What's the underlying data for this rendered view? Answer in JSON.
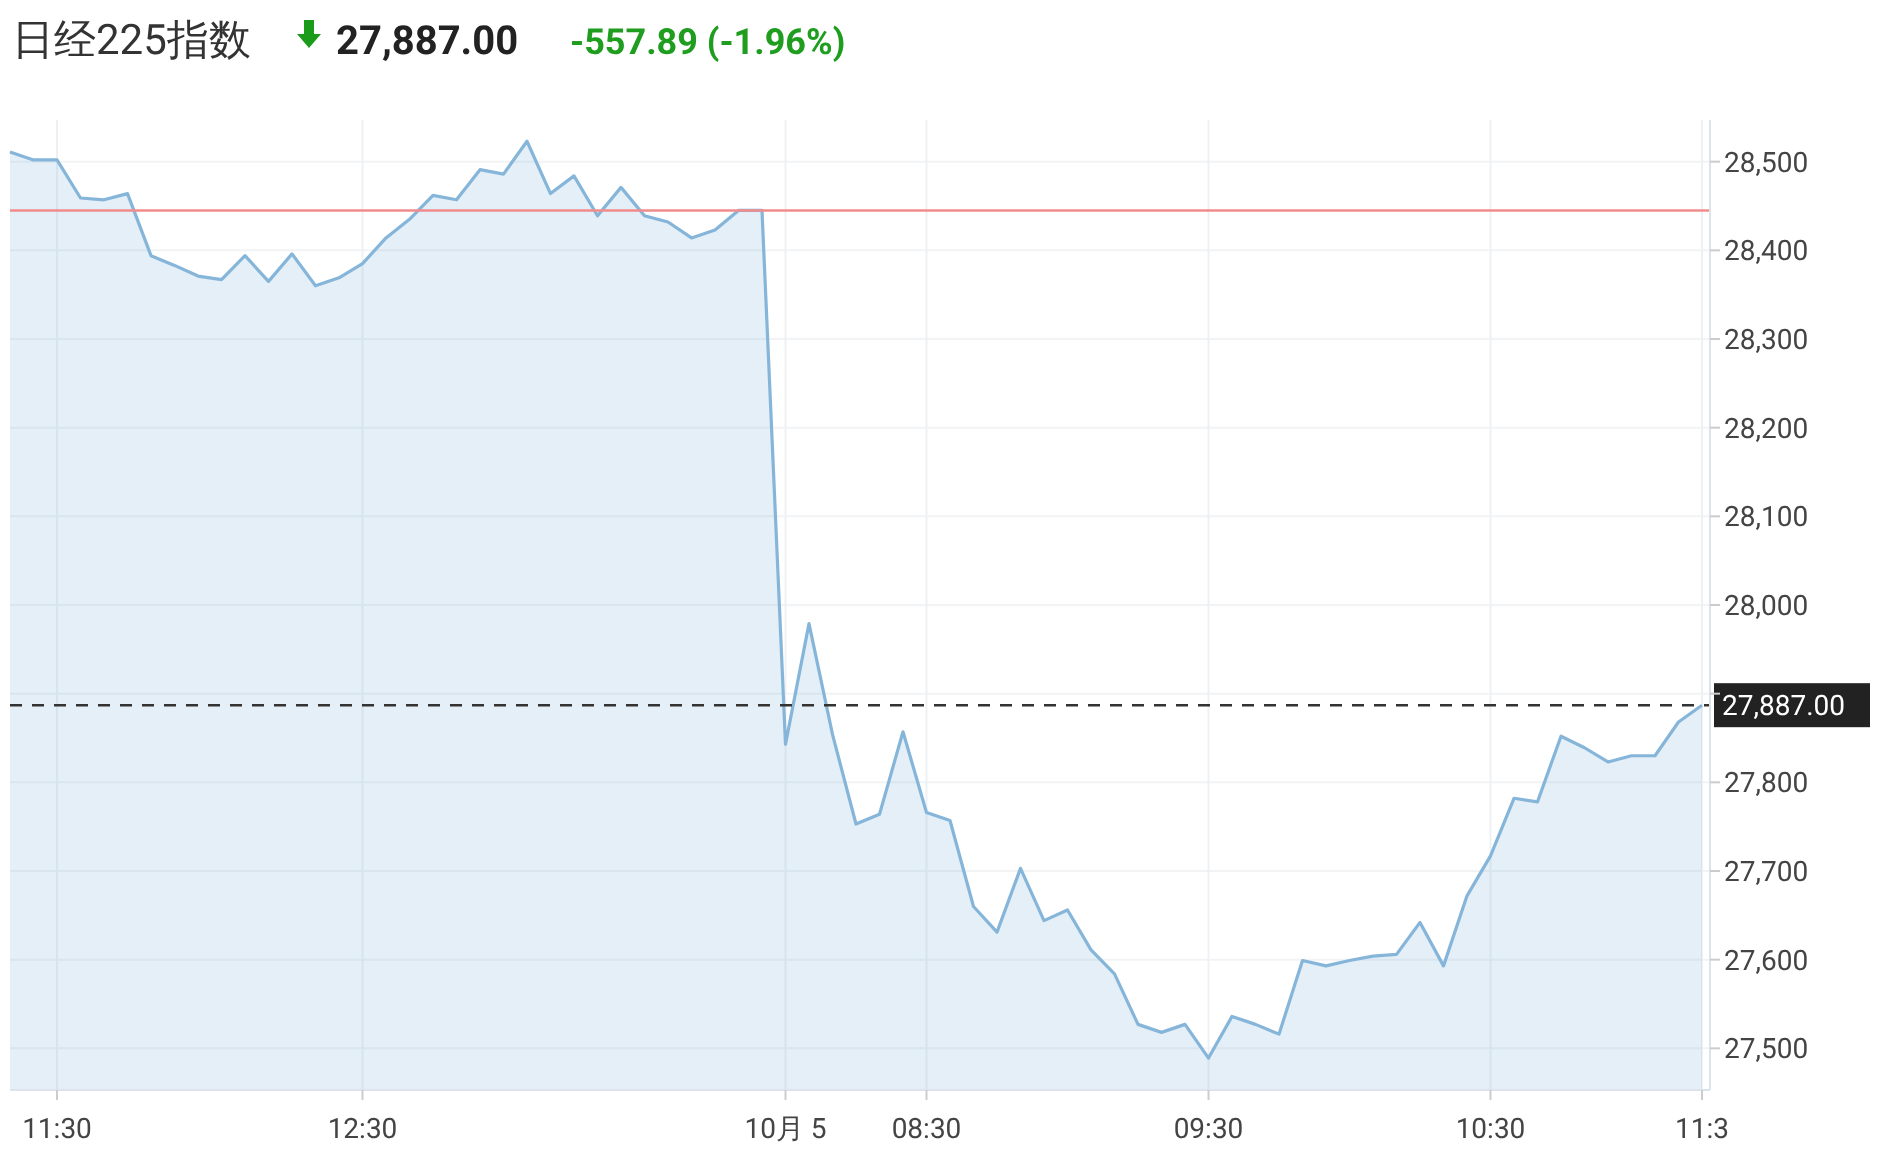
{
  "chart_data": {
    "type": "area",
    "title": "日经225指数",
    "subtitle": "27,887.00",
    "annotations": [
      "-557.89 (-1.96%)"
    ],
    "categories": [
      null,
      null,
      "11:30",
      null,
      null,
      null,
      null,
      null,
      null,
      null,
      null,
      null,
      null,
      null,
      null,
      "12:30",
      null,
      null,
      null,
      null,
      null,
      null,
      null,
      null,
      null,
      null,
      null,
      null,
      null,
      null,
      null,
      null,
      null,
      "10月 5",
      null,
      null,
      null,
      null,
      null,
      "08:30",
      null,
      null,
      null,
      null,
      null,
      null,
      null,
      null,
      null,
      null,
      null,
      "09:30",
      null,
      null,
      null,
      null,
      null,
      null,
      null,
      null,
      null,
      null,
      null,
      "10:30",
      null,
      null,
      null,
      null,
      null,
      null,
      null,
      null,
      "11:3"
    ],
    "series": [
      {
        "color": "#86b5da",
        "values": [
          28511,
          28502,
          28502,
          28459,
          28457,
          28464,
          28394,
          28383,
          28371,
          28367,
          28394,
          28365,
          28396,
          28360,
          28369,
          28385,
          28414,
          28435,
          28462,
          28457,
          28491,
          28486,
          28523,
          28464,
          28484,
          28439,
          28471,
          28439,
          28432,
          28414,
          28423,
          28445,
          28445,
          27843,
          27979,
          27854,
          27753,
          27764,
          27857,
          27766,
          27757,
          27660,
          27631,
          27703,
          27644,
          27656,
          27611,
          27584,
          27527,
          27518,
          27527,
          27489,
          27536,
          27527,
          27516,
          27599,
          27593,
          27599,
          27604,
          27606,
          27642,
          27593,
          27672,
          27717,
          27782,
          27778,
          27852,
          27839,
          27823,
          27830,
          27830,
          27868,
          27887
        ]
      }
    ],
    "ylim": [
      27453,
      28547
    ],
    "yticks": [
      {
        "value": 27500,
        "label": "27,500"
      },
      {
        "value": 27600,
        "label": "27,600"
      },
      {
        "value": 27700,
        "label": "27,700"
      },
      {
        "value": 27800,
        "label": "27,800"
      },
      {
        "value": 27900,
        "label": null
      },
      {
        "value": 28000,
        "label": "28,000"
      },
      {
        "value": 28100,
        "label": "28,100"
      },
      {
        "value": 28200,
        "label": "28,200"
      },
      {
        "value": 28300,
        "label": "28,300"
      },
      {
        "value": 28400,
        "label": "28,400"
      },
      {
        "value": 28500,
        "label": "28,500"
      }
    ],
    "ref_lines": [
      {
        "axis": "y",
        "value": 28445,
        "color": "#f28b8b",
        "line_style": "solid"
      },
      {
        "axis": "y",
        "value": 27887,
        "label": "27,887.00",
        "color": "#333333",
        "line_style": "dashed"
      }
    ],
    "grid": true
  }
}
